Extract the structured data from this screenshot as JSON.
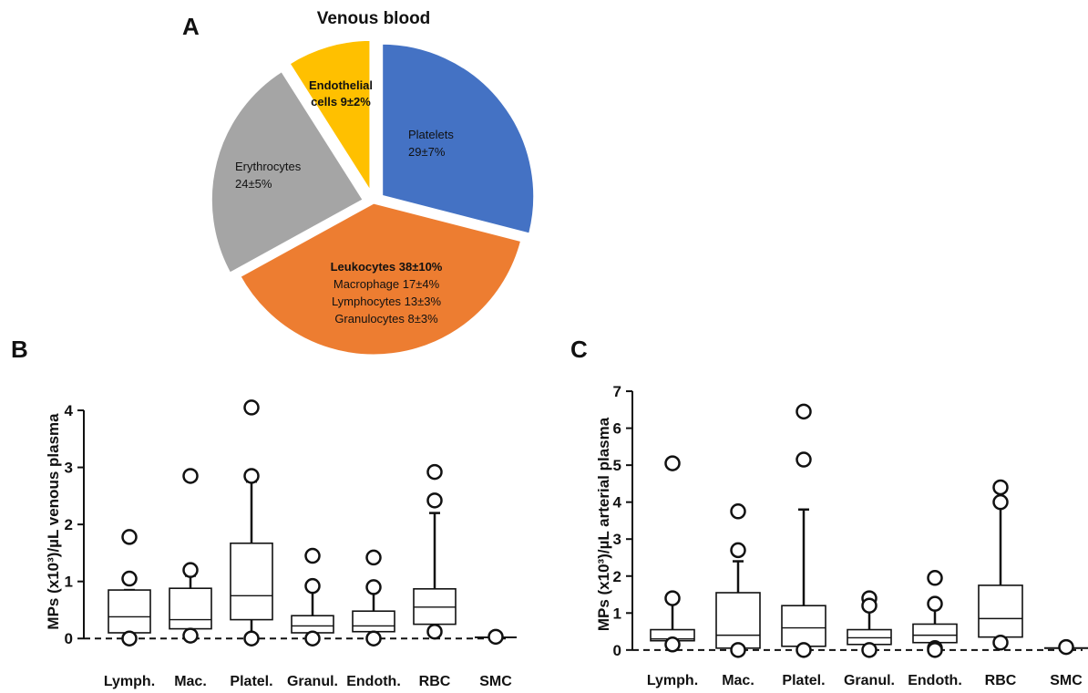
{
  "panels": {
    "a": "A",
    "b": "B",
    "c": "C"
  },
  "chart_data": [
    {
      "type": "pie",
      "title": "Venous blood",
      "slices": [
        {
          "name": "Platelets",
          "value": 29,
          "label_lines": [
            "Platelets",
            "29±7%"
          ],
          "color": "#4472C4",
          "exploded": true
        },
        {
          "name": "Leukocytes",
          "value": 38,
          "label_lines": [
            "Leukocytes 38±10%",
            "Macrophage 17±4%",
            "Lymphocytes 13±3%",
            "Granulocytes 8±3%"
          ],
          "color": "#ED7D31",
          "exploded": false
        },
        {
          "name": "Erythrocytes",
          "value": 24,
          "label_lines": [
            "Erythrocytes",
            "24±5%"
          ],
          "color": "#A5A5A5",
          "exploded": true
        },
        {
          "name": "Endothelial cells",
          "value": 9,
          "label_lines": [
            "Endothelial",
            "cells 9±2%"
          ],
          "color": "#FFC000",
          "exploded": true
        }
      ]
    },
    {
      "type": "box",
      "ylabel": "MPs (x10³)/µL venous plasma",
      "ylim": [
        -0.3,
        4.4
      ],
      "yticks": [
        0,
        1,
        2,
        3,
        4
      ],
      "baseline_dashed": 0,
      "categories": [
        "Lymph.",
        "Mac.",
        "Platel.",
        "Granul.",
        "Endoth.",
        "RBC",
        "SMC"
      ],
      "boxes": [
        {
          "whisker_low": 0.0,
          "q1": 0.1,
          "median": 0.38,
          "q3": 0.85,
          "whisker_high": 0.85,
          "outliers": [
            1.78,
            1.05,
            0.0
          ]
        },
        {
          "whisker_low": 0.1,
          "q1": 0.17,
          "median": 0.33,
          "q3": 0.88,
          "whisker_high": 1.1,
          "outliers": [
            2.85,
            1.2,
            0.05
          ]
        },
        {
          "whisker_low": 0.0,
          "q1": 0.33,
          "median": 0.75,
          "q3": 1.67,
          "whisker_high": 2.75,
          "outliers": [
            4.05,
            2.85,
            0.0
          ]
        },
        {
          "whisker_low": 0.05,
          "q1": 0.1,
          "median": 0.22,
          "q3": 0.4,
          "whisker_high": 0.88,
          "outliers": [
            1.45,
            0.92,
            0.0
          ]
        },
        {
          "whisker_low": 0.05,
          "q1": 0.12,
          "median": 0.22,
          "q3": 0.48,
          "whisker_high": 0.85,
          "outliers": [
            1.42,
            0.9,
            0.0
          ]
        },
        {
          "whisker_low": 0.1,
          "q1": 0.25,
          "median": 0.55,
          "q3": 0.87,
          "whisker_high": 2.2,
          "outliers": [
            2.92,
            2.42,
            0.12
          ]
        },
        {
          "whisker_low": 0.02,
          "q1": 0.02,
          "median": 0.02,
          "q3": 0.02,
          "whisker_high": 0.02,
          "outliers": [
            0.03
          ]
        }
      ]
    },
    {
      "type": "box",
      "ylabel": "MPs (x10³)/µL arterial plasma",
      "ylim": [
        -0.3,
        7.1
      ],
      "yticks": [
        0,
        1,
        2,
        3,
        4,
        5,
        6,
        7
      ],
      "baseline_dashed": 0,
      "categories": [
        "Lymph.",
        "Mac.",
        "Platel.",
        "Granul.",
        "Endoth.",
        "RBC",
        "SMC"
      ],
      "boxes": [
        {
          "whisker_low": 0.15,
          "q1": 0.25,
          "median": 0.3,
          "q3": 0.55,
          "whisker_high": 1.3,
          "outliers": [
            5.05,
            1.4,
            0.15
          ]
        },
        {
          "whisker_low": 0.0,
          "q1": 0.05,
          "median": 0.4,
          "q3": 1.55,
          "whisker_high": 2.4,
          "outliers": [
            3.75,
            2.7,
            0.0
          ]
        },
        {
          "whisker_low": 0.0,
          "q1": 0.1,
          "median": 0.6,
          "q3": 1.2,
          "whisker_high": 3.8,
          "outliers": [
            6.45,
            5.15,
            0.0
          ]
        },
        {
          "whisker_low": 0.05,
          "q1": 0.15,
          "median": 0.33,
          "q3": 0.55,
          "whisker_high": 1.2,
          "outliers": [
            1.4,
            1.2,
            0.0
          ]
        },
        {
          "whisker_low": 0.05,
          "q1": 0.2,
          "median": 0.4,
          "q3": 0.7,
          "whisker_high": 1.2,
          "outliers": [
            1.95,
            1.25,
            0.05,
            0.0
          ]
        },
        {
          "whisker_low": 0.15,
          "q1": 0.35,
          "median": 0.85,
          "q3": 1.75,
          "whisker_high": 3.9,
          "outliers": [
            4.4,
            4.0,
            0.2
          ]
        },
        {
          "whisker_low": 0.05,
          "q1": 0.05,
          "median": 0.05,
          "q3": 0.05,
          "whisker_high": 0.05,
          "outliers": [
            0.08
          ]
        }
      ]
    }
  ]
}
